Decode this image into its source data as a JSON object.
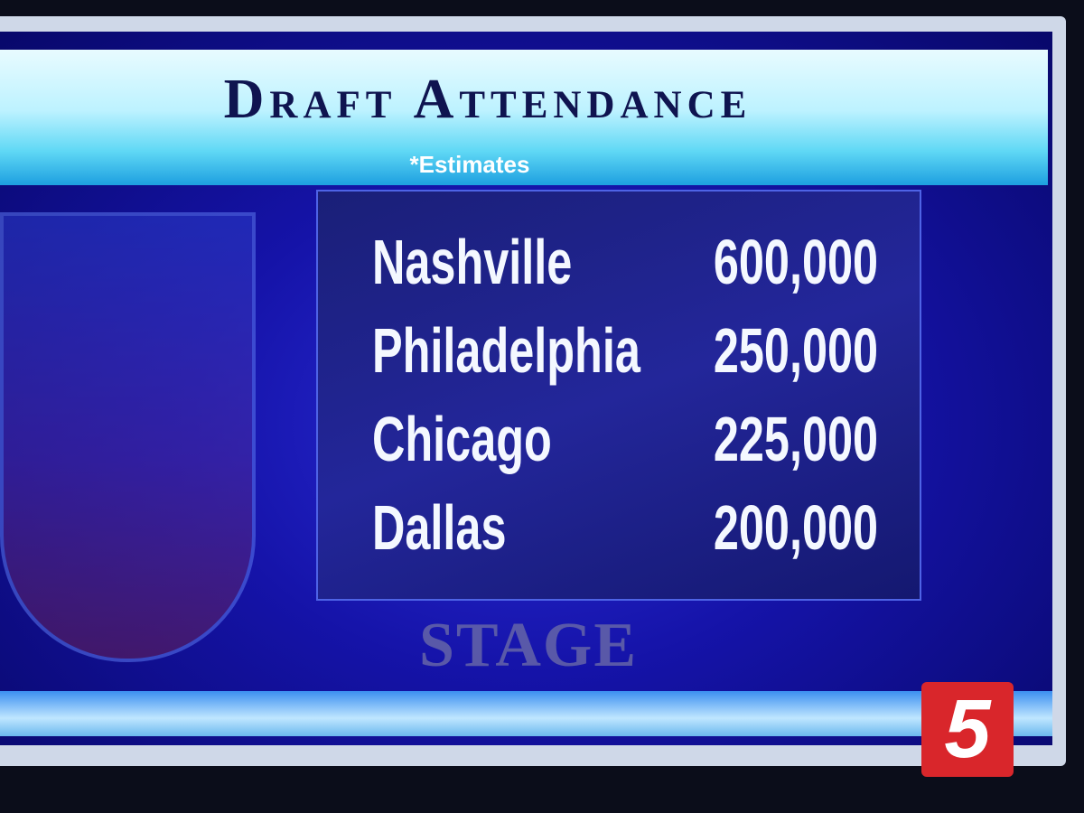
{
  "header": {
    "title": "Draft Attendance",
    "subtitle": "*Estimates"
  },
  "table": {
    "rows": [
      [
        "Nashville",
        "600,000"
      ],
      [
        "Philadelphia",
        "250,000"
      ],
      [
        "Chicago",
        "225,000"
      ],
      [
        "Dallas",
        "200,000"
      ]
    ]
  },
  "background": {
    "stage_sign": "STAGE"
  },
  "logo": {
    "channel": "5"
  }
}
